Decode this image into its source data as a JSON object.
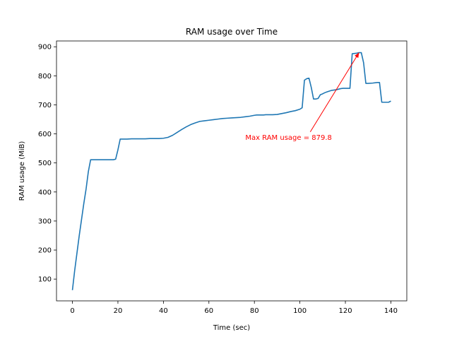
{
  "chart_data": {
    "type": "line",
    "title": "RAM usage over Time",
    "xlabel": "Time (sec)",
    "ylabel": "RAM usage (MiB)",
    "xlim": [
      -7,
      147
    ],
    "ylim": [
      25,
      920
    ],
    "xticks": [
      0,
      20,
      40,
      60,
      80,
      100,
      120,
      140
    ],
    "yticks": [
      100,
      200,
      300,
      400,
      500,
      600,
      700,
      800,
      900
    ],
    "grid": false,
    "line_color": "#1f77b4",
    "series": [
      {
        "x": [
          0,
          1,
          2,
          3,
          4,
          5,
          6,
          7,
          8,
          9,
          10,
          12,
          14,
          16,
          18,
          19,
          20,
          21,
          22,
          24,
          26,
          28,
          30,
          32,
          34,
          36,
          38,
          40,
          42,
          44,
          46,
          48,
          50,
          52,
          54,
          56,
          58,
          60,
          62,
          64,
          66,
          68,
          70,
          72,
          74,
          76,
          78,
          80,
          81,
          82,
          83,
          84,
          85,
          86,
          88,
          90,
          92,
          94,
          96,
          98,
          100,
          101,
          102,
          103,
          104,
          105,
          106,
          107,
          108,
          109,
          110,
          111,
          112,
          114,
          116,
          118,
          119,
          120,
          121,
          122,
          123,
          124,
          125,
          126,
          127,
          128,
          129,
          130,
          132,
          134,
          135,
          136,
          137,
          138,
          139,
          140
        ],
        "y": [
          62,
          130,
          190,
          250,
          305,
          360,
          410,
          470,
          511,
          511,
          511,
          511,
          511,
          511,
          511,
          513,
          545,
          582,
          582,
          582,
          583,
          583,
          583,
          583,
          584,
          584,
          584,
          585,
          588,
          595,
          605,
          615,
          624,
          632,
          638,
          643,
          645,
          647,
          649,
          651,
          653,
          654,
          655,
          656,
          657,
          659,
          661,
          664,
          665,
          665,
          665,
          665,
          666,
          666,
          666,
          667,
          670,
          673,
          677,
          680,
          685,
          690,
          785,
          790,
          792,
          760,
          720,
          720,
          722,
          735,
          738,
          742,
          745,
          750,
          752,
          756,
          757,
          757,
          757,
          757,
          876,
          877,
          878,
          879.8,
          879.8,
          845,
          774,
          774,
          775,
          777,
          777,
          709,
          709,
          709,
          709,
          713
        ]
      }
    ],
    "annotation": {
      "text": "Max RAM usage = 879.8",
      "xy": [
        126,
        879.8
      ],
      "xytext": [
        76,
        580
      ],
      "color": "#ff0000"
    }
  }
}
